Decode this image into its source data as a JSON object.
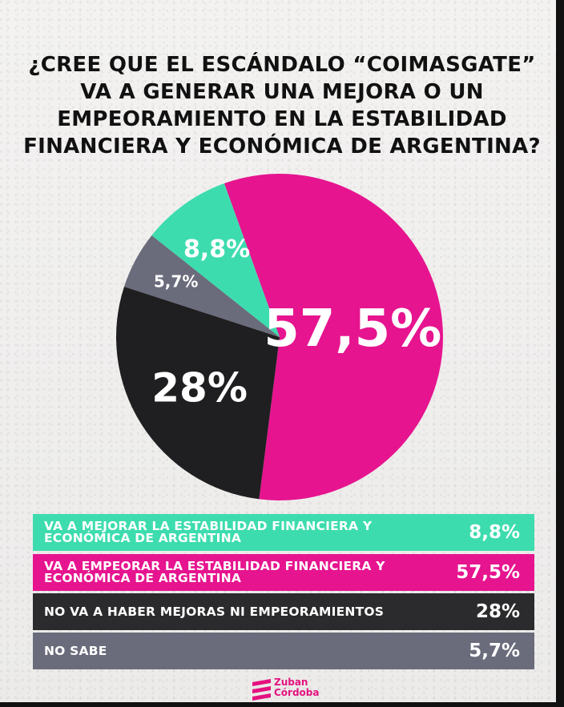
{
  "title": "¿CREE QUE EL ESCÁNDALO “COIMASGATE” VA A GENERAR UNA MEJORA O UN EMPEORAMIENTO EN LA ESTABILIDAD FINANCIERA Y ECONÓMICA DE ARGENTINA?",
  "chart_data": {
    "type": "pie",
    "title": "¿CREE QUE EL ESCÁNDALO “COIMASGATE” VA A GENERAR UNA MEJORA O UN EMPEORAMIENTO EN LA ESTABILIDAD FINANCIERA Y ECONÓMICA DE ARGENTINA?",
    "slices": [
      {
        "label": "VA A EMPEORAR LA ESTABILIDAD FINANCIERA Y ECONÓMICA DE ARGENTINA",
        "value": 57.5,
        "display": "57,5%",
        "color": "#e6148f"
      },
      {
        "label": "NO VA A HABER MEJORAS NI EMPEORAMIENTOS",
        "value": 28,
        "display": "28%",
        "color": "#1f1f21"
      },
      {
        "label": "NO SABE",
        "value": 5.7,
        "display": "5,7%",
        "color": "#6a6b7b"
      },
      {
        "label": "VA A MEJORAR LA ESTABILIDAD FINANCIERA Y ECONÓMICA DE ARGENTINA",
        "value": 8.8,
        "display": "8,8%",
        "color": "#3ddcae"
      }
    ]
  },
  "legend": [
    {
      "label": "VA A MEJORAR LA ESTABILIDAD FINANCIERA Y ECONÓMICA DE ARGENTINA",
      "value": "8,8%",
      "color": "#3ddcae"
    },
    {
      "label": "VA A EMPEORAR LA ESTABILIDAD FINANCIERA Y ECONÓMICA DE ARGENTINA",
      "value": "57,5%",
      "color": "#e6148f"
    },
    {
      "label": "NO VA A HABER MEJORAS NI EMPEORAMIENTOS",
      "value": "28%",
      "color": "#2b2b2d"
    },
    {
      "label": "NO SABE",
      "value": "5,7%",
      "color": "#6a6b7b"
    }
  ],
  "logo": {
    "name": "Zuban Córdoba",
    "color": "#e4117f"
  }
}
